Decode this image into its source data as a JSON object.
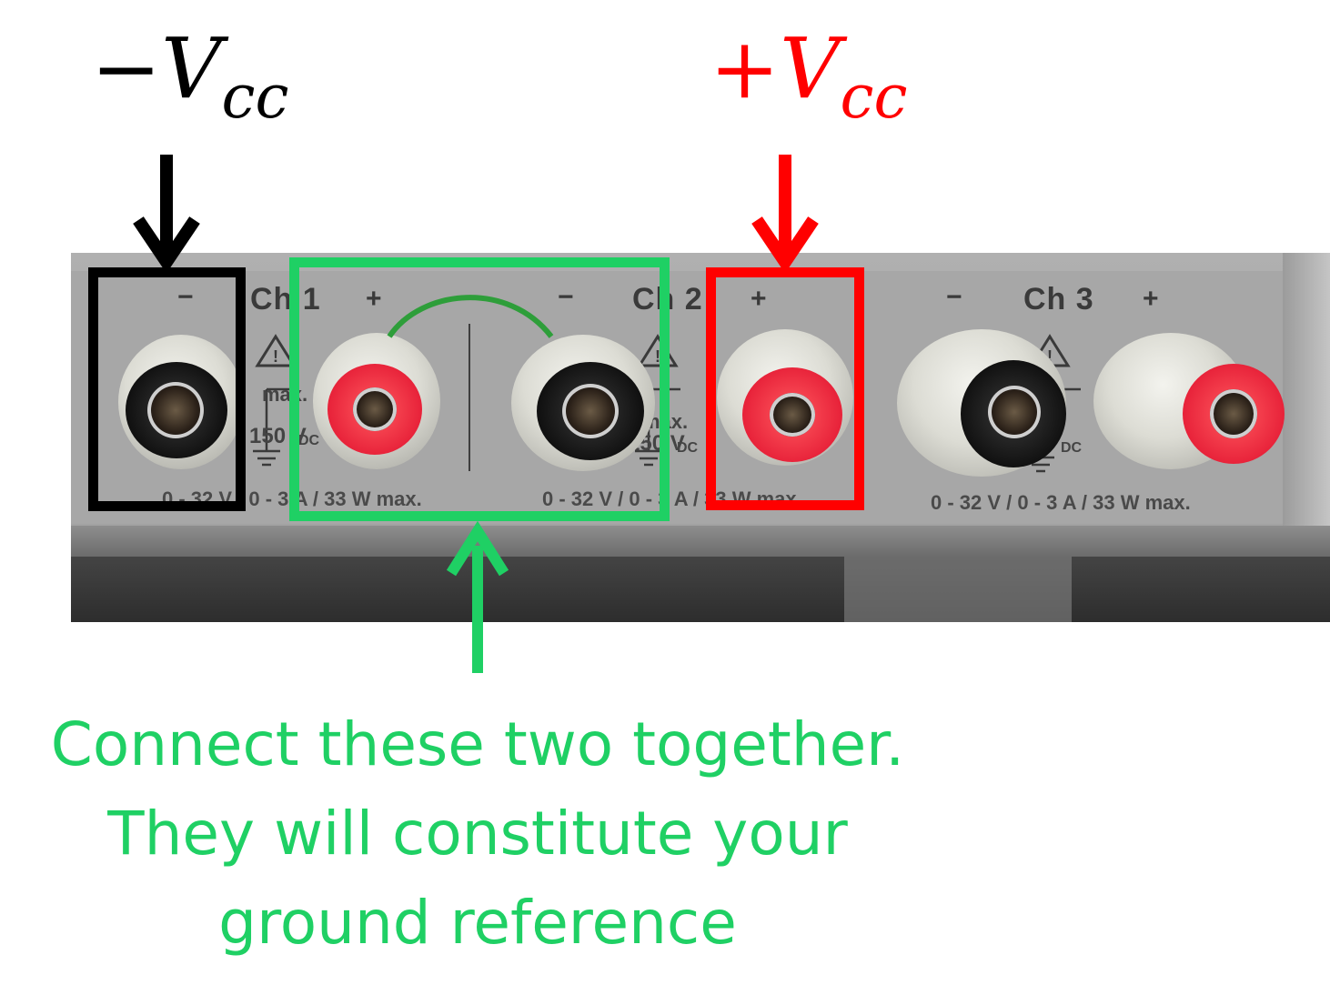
{
  "labels": {
    "neg_vcc": {
      "sign": "−",
      "main": "V",
      "sub": "cc",
      "color": "#000000"
    },
    "pos_vcc": {
      "sign": "+",
      "main": "V",
      "sub": "cc",
      "color": "#ff0000"
    }
  },
  "panel": {
    "ch1": "Ch 1",
    "ch2": "Ch 2",
    "ch3": "Ch 3",
    "minus": "−",
    "plus": "+",
    "max_label": "max.",
    "max_voltage": "150 V",
    "dc": "DC",
    "rating": "0 - 32 V / 0 - 3 A / 33 W max."
  },
  "caption": {
    "line1": "Connect these two together.",
    "line2": "They will constitute your",
    "line3": "ground reference"
  },
  "colors": {
    "neg_highlight": "#000000",
    "ground_highlight": "#1fd064",
    "pos_highlight": "#ff0000",
    "jumper_wire": "#2e9e3a"
  },
  "icons": [
    "warning-icon",
    "ground-symbol-icon",
    "binding-post-icon"
  ]
}
